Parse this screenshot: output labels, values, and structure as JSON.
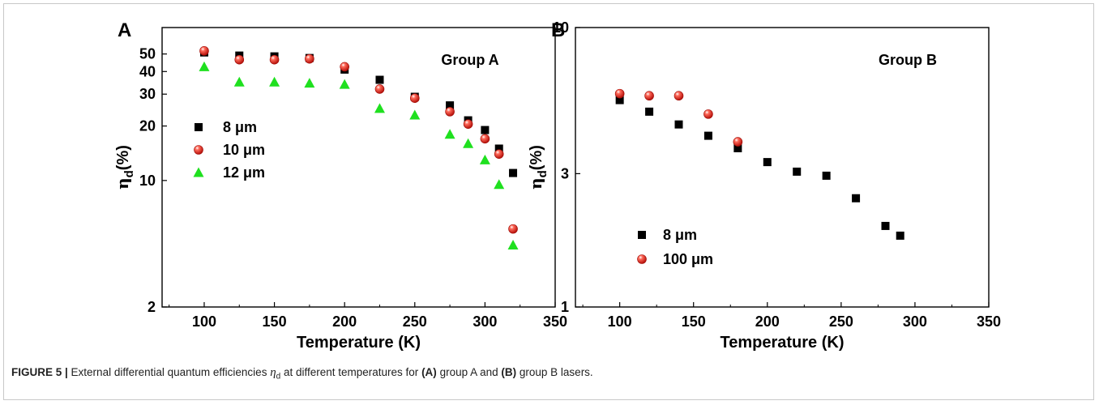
{
  "chart_data": [
    {
      "panel_label": "A",
      "type": "scatter",
      "y_scale": "log",
      "annotation": "Group A",
      "xlabel": "Temperature (K)",
      "ylabel_main": "η",
      "ylabel_sub": "d",
      "ylabel_suffix": "(%)",
      "xlim": [
        70,
        350
      ],
      "ylim": [
        2,
        70
      ],
      "x_ticks": [
        100,
        150,
        200,
        250,
        300,
        350
      ],
      "y_ticks": [
        2,
        10,
        20,
        30,
        40,
        50
      ],
      "legend_position": "left",
      "series": [
        {
          "name": "8 μm",
          "marker": "square",
          "color": "#000000",
          "x": [
            100,
            125,
            150,
            175,
            200,
            225,
            250,
            275,
            288,
            300,
            310,
            320
          ],
          "y": [
            51,
            49,
            48.5,
            47.5,
            41,
            36,
            29,
            26,
            21.5,
            19,
            15,
            11
          ]
        },
        {
          "name": "10 μm",
          "marker": "sphere",
          "color": "#e8271f",
          "x": [
            100,
            125,
            150,
            175,
            200,
            225,
            250,
            275,
            288,
            300,
            310,
            320
          ],
          "y": [
            52,
            46.5,
            46.5,
            47,
            42.5,
            32,
            28.5,
            24,
            20.5,
            17,
            14,
            5.4
          ]
        },
        {
          "name": "12 μm",
          "marker": "triangle",
          "color": "#1fe01f",
          "x": [
            100,
            125,
            150,
            175,
            200,
            225,
            250,
            275,
            288,
            300,
            310,
            320
          ],
          "y": [
            42.5,
            35,
            35,
            34.5,
            34,
            25,
            23,
            18,
            16,
            13,
            9.5,
            4.4
          ]
        }
      ]
    },
    {
      "panel_label": "B",
      "type": "scatter",
      "y_scale": "log",
      "annotation": "Group B",
      "xlabel": "Temperature (K)",
      "ylabel_main": "η",
      "ylabel_sub": "d",
      "ylabel_suffix": "(%)",
      "xlim": [
        70,
        350
      ],
      "ylim": [
        1,
        10
      ],
      "x_ticks": [
        100,
        150,
        200,
        250,
        300,
        350
      ],
      "y_ticks": [
        1,
        3,
        10
      ],
      "legend_position": "lower-left",
      "series": [
        {
          "name": "8 μm",
          "marker": "square",
          "color": "#000000",
          "x": [
            100,
            120,
            140,
            160,
            180,
            200,
            220,
            240,
            260,
            280,
            290
          ],
          "y": [
            5.5,
            5.0,
            4.5,
            4.1,
            3.7,
            3.3,
            3.05,
            2.95,
            2.45,
            1.95,
            1.8
          ]
        },
        {
          "name": "100 μm",
          "marker": "sphere",
          "color": "#e8271f",
          "x": [
            100,
            120,
            140,
            160,
            180
          ],
          "y": [
            5.8,
            5.7,
            5.7,
            4.9,
            3.9
          ]
        }
      ]
    }
  ],
  "caption": {
    "label": "FIGURE 5 |",
    "text_1": " External differential quantum efficiencies ",
    "eta": "η",
    "eta_sub": "d",
    "text_2": " at different temperatures for ",
    "ref_a": "(A)",
    "text_3": " group A and ",
    "ref_b": "(B)",
    "text_4": " group B lasers."
  }
}
